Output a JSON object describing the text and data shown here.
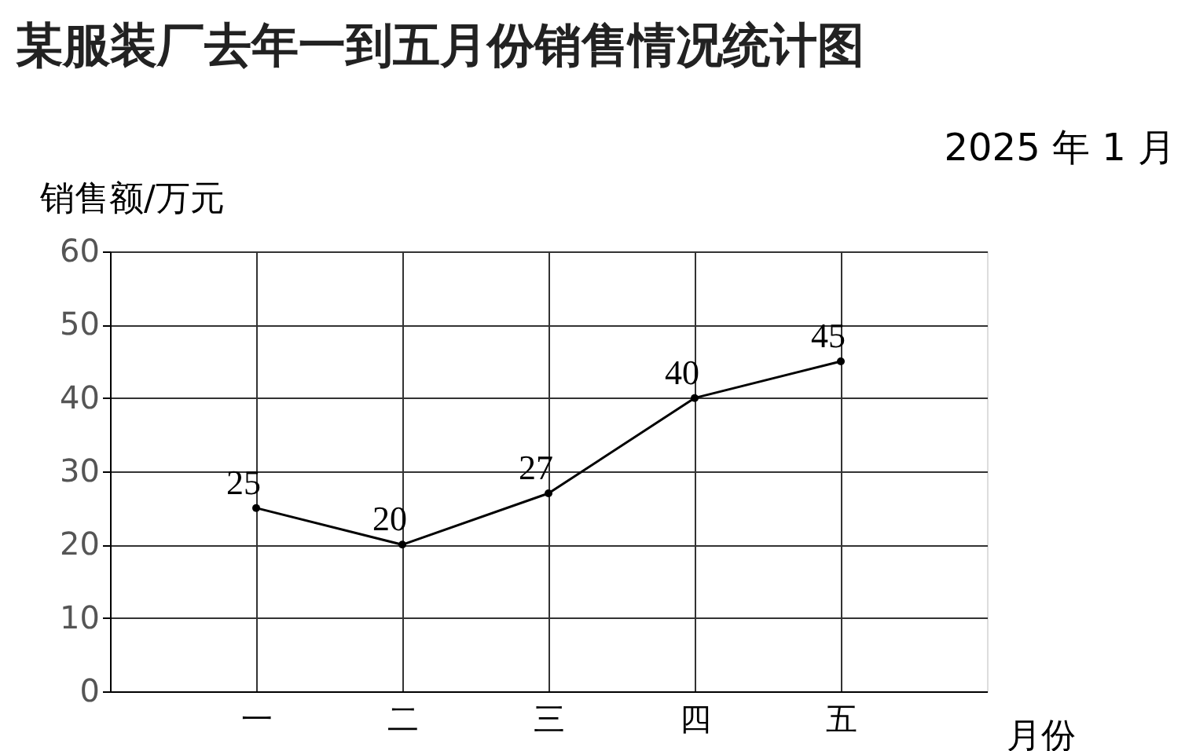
{
  "chart_data": {
    "type": "line",
    "title": "某服装厂去年一到五月份销售情况统计图",
    "annotations": [
      "2025 年 1 月"
    ],
    "xlabel": "月份",
    "ylabel": "销售额/万元",
    "categories": [
      "一",
      "二",
      "三",
      "四",
      "五"
    ],
    "series": [
      {
        "color": "#000000",
        "values": [
          25,
          20,
          27,
          40,
          45
        ]
      }
    ],
    "ylim": [
      0,
      60
    ],
    "yticks": [
      0,
      10,
      20,
      30,
      40,
      50,
      60
    ],
    "grid": true,
    "marker": "circle",
    "data_labels": true
  }
}
